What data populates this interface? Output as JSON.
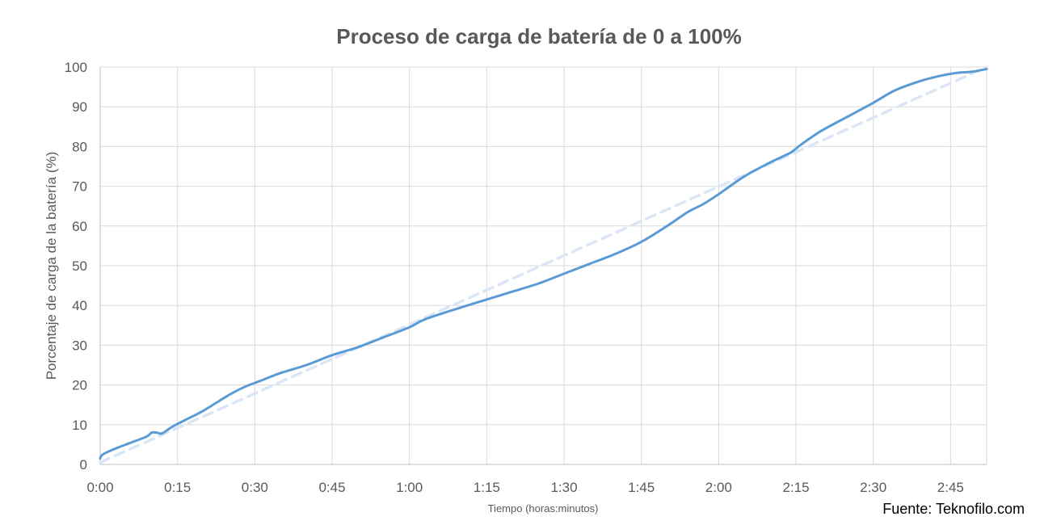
{
  "chart_data": {
    "type": "line",
    "title": "Proceso de carga de batería de 0 a 100%",
    "xlabel": "Tiempo (horas:minutos)",
    "ylabel": "Porcentaje de carga de la batería (%)",
    "x_unit": "minutes",
    "x_ticks": [
      {
        "value": 0,
        "label": "0:00"
      },
      {
        "value": 15,
        "label": "0:15"
      },
      {
        "value": 30,
        "label": "0:30"
      },
      {
        "value": 45,
        "label": "0:45"
      },
      {
        "value": 60,
        "label": "1:00"
      },
      {
        "value": 75,
        "label": "1:15"
      },
      {
        "value": 90,
        "label": "1:30"
      },
      {
        "value": 105,
        "label": "1:45"
      },
      {
        "value": 120,
        "label": "2:00"
      },
      {
        "value": 135,
        "label": "2:15"
      },
      {
        "value": 150,
        "label": "2:30"
      },
      {
        "value": 165,
        "label": "2:45"
      }
    ],
    "y_ticks": [
      0,
      10,
      20,
      30,
      40,
      50,
      60,
      70,
      80,
      90,
      100
    ],
    "xlim": [
      0,
      172
    ],
    "ylim": [
      0,
      100
    ],
    "grid": true,
    "series": [
      {
        "kind": "solid",
        "color": "#5b9bd5",
        "x": [
          0,
          0.5,
          3,
          6,
          9,
          10,
          11,
          12,
          14,
          17,
          20,
          25,
          28,
          31,
          35,
          40,
          45,
          50,
          55,
          60,
          63,
          70,
          75,
          80,
          85,
          90,
          95,
          100,
          105,
          110,
          114,
          117,
          120,
          125,
          130,
          134,
          136,
          140,
          145,
          150,
          154,
          158,
          162,
          166,
          169,
          172
        ],
        "y": [
          1.5,
          2.5,
          4.0,
          5.5,
          7.0,
          8.0,
          8.0,
          7.8,
          9.5,
          11.5,
          13.5,
          17.5,
          19.5,
          21.0,
          23.0,
          25.0,
          27.5,
          29.5,
          32.0,
          34.5,
          36.5,
          39.5,
          41.5,
          43.5,
          45.5,
          48.0,
          50.5,
          53.0,
          56.0,
          60.0,
          63.5,
          65.5,
          68.0,
          72.5,
          76.0,
          78.5,
          80.5,
          84.0,
          87.5,
          91.0,
          94.0,
          96.0,
          97.5,
          98.5,
          98.8,
          99.5
        ]
      },
      {
        "kind": "dashed",
        "color": "#dae6f6",
        "x": [
          0,
          172
        ],
        "y": [
          0.5,
          100
        ]
      }
    ]
  },
  "source": {
    "text": "Fuente: Teknofilo.com"
  }
}
